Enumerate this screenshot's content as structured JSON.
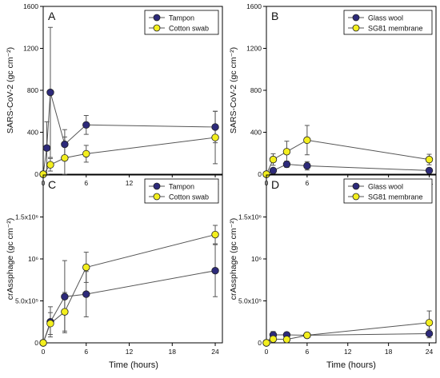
{
  "figure": {
    "xlabel": "Time (hours)"
  },
  "colors": {
    "series_a": "#2d2a7a",
    "series_b": "#f3ef1e",
    "axis": "#000000",
    "line": "#555555"
  },
  "chart_data": [
    {
      "panel": "A",
      "type": "line",
      "ylabel": "SARS-CoV-2 (gc cm⁻²)",
      "ylim": [
        0,
        1600
      ],
      "yticks": [
        {
          "v": 0,
          "label": "0"
        },
        {
          "v": 400,
          "label": "400"
        },
        {
          "v": 800,
          "label": "800"
        },
        {
          "v": 1200,
          "label": "1200"
        },
        {
          "v": 1600,
          "label": "1600"
        }
      ],
      "xlim": [
        0,
        25
      ],
      "xticks": [
        0,
        6,
        12,
        18,
        24
      ],
      "legend": "top-right",
      "series": [
        {
          "name": "Tampon",
          "x": [
            0,
            0.5,
            1,
            3,
            6,
            24
          ],
          "y": [
            0,
            250,
            780,
            285,
            470,
            450
          ],
          "err": [
            0,
            250,
            620,
            140,
            90,
            150
          ]
        },
        {
          "name": "Cotton swab",
          "x": [
            0,
            1,
            3,
            6,
            24
          ],
          "y": [
            0,
            90,
            155,
            195,
            350
          ],
          "err": [
            0,
            60,
            200,
            80,
            250
          ]
        }
      ]
    },
    {
      "panel": "B",
      "type": "line",
      "ylabel": "SARS-CoV-2 (gc cm⁻²)",
      "ylim": [
        0,
        1600
      ],
      "yticks": [
        {
          "v": 0,
          "label": "0"
        },
        {
          "v": 400,
          "label": "400"
        },
        {
          "v": 800,
          "label": "800"
        },
        {
          "v": 1200,
          "label": "1200"
        },
        {
          "v": 1600,
          "label": "1600"
        }
      ],
      "xlim": [
        0,
        25
      ],
      "xticks": [
        0,
        6,
        12,
        18,
        24
      ],
      "legend": "top-right",
      "series": [
        {
          "name": "Glass wool",
          "x": [
            0,
            1,
            3,
            6,
            24
          ],
          "y": [
            0,
            35,
            95,
            80,
            35
          ],
          "err": [
            0,
            20,
            30,
            40,
            15
          ]
        },
        {
          "name": "SG81 membrane",
          "x": [
            0,
            1,
            3,
            6,
            24
          ],
          "y": [
            0,
            140,
            215,
            325,
            140
          ],
          "err": [
            0,
            55,
            100,
            140,
            50
          ]
        }
      ]
    },
    {
      "panel": "C",
      "type": "line",
      "ylabel": "crAssphage (gc cm⁻²)",
      "ylim": [
        0,
        2000000
      ],
      "yticks": [
        {
          "v": 0,
          "label": "0"
        },
        {
          "v": 500000,
          "label": "5.0x10⁵"
        },
        {
          "v": 1000000,
          "label": "10⁶"
        },
        {
          "v": 1500000,
          "label": "1.5x10⁶"
        }
      ],
      "xlim": [
        0,
        25
      ],
      "xticks": [
        0,
        6,
        12,
        18,
        24
      ],
      "legend": "top-right",
      "series": [
        {
          "name": "Tampon",
          "x": [
            0,
            1,
            3,
            6,
            24
          ],
          "y": [
            0,
            250000,
            550000,
            580000,
            860000
          ],
          "err": [
            0,
            180000,
            430000,
            270000,
            310000
          ]
        },
        {
          "name": "Cotton swab",
          "x": [
            0,
            1,
            3,
            6,
            24
          ],
          "y": [
            0,
            230000,
            370000,
            900000,
            1290000
          ],
          "err": [
            0,
            130000,
            230000,
            180000,
            110000
          ]
        }
      ]
    },
    {
      "panel": "D",
      "type": "line",
      "ylabel": "crAssphage (gc cm⁻²)",
      "ylim": [
        0,
        2000000
      ],
      "yticks": [
        {
          "v": 0,
          "label": "0"
        },
        {
          "v": 500000,
          "label": "5.0x10⁵"
        },
        {
          "v": 1000000,
          "label": "10⁶"
        },
        {
          "v": 1500000,
          "label": "1.5x10⁶"
        }
      ],
      "xlim": [
        0,
        25
      ],
      "xticks": [
        0,
        6,
        12,
        18,
        24
      ],
      "legend": "top-right",
      "series": [
        {
          "name": "Glass wool",
          "x": [
            0,
            1,
            3,
            6,
            24
          ],
          "y": [
            0,
            95000,
            95000,
            90000,
            110000
          ],
          "err": [
            0,
            40000,
            30000,
            20000,
            50000
          ]
        },
        {
          "name": "SG81 membrane",
          "x": [
            0,
            1,
            3,
            6,
            24
          ],
          "y": [
            0,
            45000,
            40000,
            90000,
            240000
          ],
          "err": [
            0,
            20000,
            20000,
            20000,
            140000
          ]
        }
      ]
    }
  ]
}
